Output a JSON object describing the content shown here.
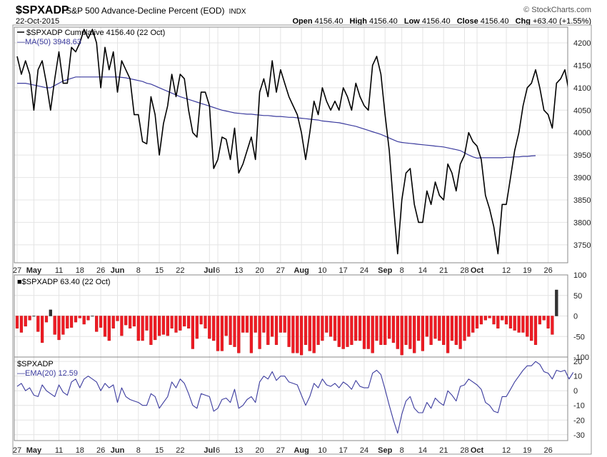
{
  "header": {
    "symbol": "$SPXADP",
    "description": "S&P 500 Advance-Decline Percent (EOD)",
    "exchange": "INDX",
    "date": "22-Oct-2015",
    "brand": "© StockCharts.com",
    "open_label": "Open",
    "open": "4156.40",
    "high_label": "High",
    "high": "4156.40",
    "low_label": "Low",
    "low": "4156.40",
    "close_label": "Close",
    "close": "4156.40",
    "chg_label": "Chg",
    "chg": "+63.40 (+1.55%)"
  },
  "colors": {
    "price_line": "#000000",
    "ma_line": "#3b3b9e",
    "ema_line": "#3b3b9e",
    "bar_up": "#333333",
    "bar_down": "#ee1c25",
    "grid": "#e4e4e4",
    "panel_border": "#888888"
  },
  "x_axis": {
    "ticks": [
      {
        "label": "27",
        "i": 0,
        "bold": false
      },
      {
        "label": "May",
        "i": 4,
        "bold": true
      },
      {
        "label": "11",
        "i": 10,
        "bold": false
      },
      {
        "label": "18",
        "i": 15,
        "bold": false
      },
      {
        "label": "26",
        "i": 20,
        "bold": false
      },
      {
        "label": "Jun",
        "i": 24,
        "bold": true
      },
      {
        "label": "8",
        "i": 29,
        "bold": false
      },
      {
        "label": "15",
        "i": 34,
        "bold": false
      },
      {
        "label": "22",
        "i": 39,
        "bold": false
      },
      {
        "label": "Jul",
        "i": 46,
        "bold": true
      },
      {
        "label": "6",
        "i": 48,
        "bold": false
      },
      {
        "label": "13",
        "i": 53,
        "bold": false
      },
      {
        "label": "20",
        "i": 58,
        "bold": false
      },
      {
        "label": "27",
        "i": 63,
        "bold": false
      },
      {
        "label": "Aug",
        "i": 68,
        "bold": true
      },
      {
        "label": "10",
        "i": 73,
        "bold": false
      },
      {
        "label": "17",
        "i": 78,
        "bold": false
      },
      {
        "label": "24",
        "i": 83,
        "bold": false
      },
      {
        "label": "Sep",
        "i": 88,
        "bold": true
      },
      {
        "label": "8",
        "i": 92,
        "bold": false
      },
      {
        "label": "14",
        "i": 97,
        "bold": false
      },
      {
        "label": "21",
        "i": 102,
        "bold": false
      },
      {
        "label": "28",
        "i": 107,
        "bold": false
      },
      {
        "label": "Oct",
        "i": 110,
        "bold": true
      },
      {
        "label": "12",
        "i": 117,
        "bold": false
      },
      {
        "label": "19",
        "i": 122,
        "bold": false
      },
      {
        "label": "26",
        "i": 127,
        "bold": false
      }
    ]
  },
  "chart_data": [
    {
      "type": "line",
      "panel": "price",
      "ylim": [
        3710,
        4235
      ],
      "yticks": [
        3750,
        3800,
        3850,
        3900,
        3950,
        4000,
        4050,
        4100,
        4150,
        4200
      ],
      "series": [
        {
          "name": "$SPXADP Cumulative",
          "legend": "$SPXADP Cumulative 4156.40 (22 Oct)",
          "values": [
            4170,
            4130,
            4160,
            4130,
            4050,
            4140,
            4160,
            4110,
            4050,
            4120,
            4180,
            4110,
            4110,
            4190,
            4180,
            4200,
            4230,
            4210,
            4230,
            4200,
            4100,
            4190,
            4140,
            4180,
            4090,
            4160,
            4140,
            4120,
            4040,
            4040,
            3980,
            3975,
            4080,
            4040,
            3950,
            4020,
            4060,
            4130,
            4080,
            4130,
            4120,
            4050,
            4000,
            3990,
            4090,
            4090,
            4060,
            3920,
            3940,
            3990,
            3985,
            3940,
            4010,
            3910,
            3930,
            3960,
            3990,
            3940,
            4090,
            4120,
            4080,
            4160,
            4090,
            4140,
            4110,
            4080,
            4060,
            4040,
            4000,
            3940,
            4000,
            4070,
            4040,
            4100,
            4070,
            4050,
            4070,
            4050,
            4100,
            4080,
            4050,
            4110,
            4080,
            4060,
            4050,
            4150,
            4170,
            4130,
            4040,
            3960,
            3840,
            3730,
            3850,
            3910,
            3920,
            3840,
            3800,
            3800,
            3870,
            3840,
            3890,
            3860,
            3850,
            3930,
            3910,
            3870,
            3930,
            3950,
            4000,
            3980,
            3970,
            3940,
            3860,
            3830,
            3790,
            3730,
            3840,
            3840,
            3900,
            3960,
            4000,
            4060,
            4100,
            4110,
            4140,
            4100,
            4050,
            4040,
            4010,
            4110,
            4120,
            4140,
            4090,
            4156.4
          ]
        },
        {
          "name": "MA(50)",
          "legend": "MA(50) 3948.63",
          "values": [
            4110,
            4110,
            4110,
            4108,
            4106,
            4104,
            4102,
            4100,
            4100,
            4105,
            4110,
            4115,
            4118,
            4121,
            4124,
            4124,
            4124,
            4124,
            4124,
            4124,
            4124,
            4124,
            4124,
            4124,
            4124,
            4123,
            4122,
            4120,
            4118,
            4116,
            4114,
            4110,
            4108,
            4104,
            4100,
            4096,
            4092,
            4088,
            4084,
            4080,
            4077,
            4074,
            4071,
            4068,
            4065,
            4062,
            4059,
            4056,
            4053,
            4050,
            4048,
            4046,
            4044,
            4043,
            4042,
            4041,
            4041,
            4040,
            4039,
            4038,
            4038,
            4037,
            4036,
            4036,
            4035,
            4034,
            4034,
            4033,
            4032,
            4031,
            4030,
            4029,
            4028,
            4026,
            4025,
            4024,
            4023,
            4022,
            4020,
            4018,
            4016,
            4014,
            4011,
            4008,
            4005,
            4002,
            3999,
            3996,
            3992,
            3988,
            3984,
            3980,
            3978,
            3977,
            3976,
            3975,
            3974,
            3973,
            3972,
            3971,
            3970,
            3969,
            3968,
            3966,
            3964,
            3962,
            3960,
            3955,
            3950,
            3946,
            3943,
            3944,
            3944,
            3944,
            3944,
            3944,
            3944,
            3945,
            3945,
            3946,
            3946,
            3947,
            3947,
            3948,
            3948.63
          ]
        }
      ]
    },
    {
      "type": "bar",
      "panel": "breadth",
      "ylim": [
        -100,
        100
      ],
      "yticks": [
        -100,
        -50,
        0,
        50,
        100
      ],
      "series": [
        {
          "name": "$SPXADP",
          "legend": "$SPXADP 63.40 (22 Oct)",
          "values": [
            -30,
            -40,
            -25,
            -10,
            0,
            -38,
            -65,
            -15,
            15,
            -45,
            -58,
            -45,
            -30,
            -28,
            -15,
            -5,
            -20,
            -10,
            0,
            -38,
            -28,
            -50,
            -60,
            -30,
            -12,
            -48,
            -22,
            -30,
            -25,
            -60,
            -60,
            -35,
            -70,
            -58,
            -48,
            -45,
            -48,
            -30,
            -40,
            -35,
            -25,
            -30,
            -80,
            -55,
            -20,
            -30,
            -55,
            -60,
            -85,
            -85,
            -48,
            -70,
            -75,
            -90,
            -40,
            -40,
            -90,
            -40,
            -80,
            -40,
            -70,
            -50,
            -70,
            -40,
            -40,
            -75,
            -90,
            -90,
            -95,
            -70,
            -85,
            -90,
            -70,
            -60,
            -40,
            -50,
            -60,
            -75,
            -80,
            -75,
            -70,
            -60,
            -60,
            -80,
            -80,
            -90,
            -60,
            -70,
            -70,
            -55,
            -65,
            -80,
            -95,
            -70,
            -80,
            -90,
            -60,
            -85,
            -50,
            -70,
            -55,
            -60,
            -70,
            -90,
            -60,
            -70,
            -80,
            -60,
            -50,
            -40,
            -30,
            -20,
            -10,
            -5,
            -20,
            -30,
            -10,
            -20,
            -30,
            -35,
            -40,
            -40,
            -50,
            -60,
            -70,
            -20,
            -10,
            -30,
            -45,
            63.4
          ]
        }
      ]
    },
    {
      "type": "line",
      "panel": "ema",
      "ylim": [
        -34,
        23
      ],
      "yticks": [
        -30,
        -20,
        -10,
        0,
        10,
        20
      ],
      "series": [
        {
          "name": "EMA(20)",
          "legend": "$SPXADP",
          "sublegend": "EMA(20) 12.59",
          "values": [
            3,
            5,
            0,
            2,
            -3,
            -4,
            4,
            0,
            -2,
            -4,
            4,
            -1,
            -3,
            6,
            8,
            2,
            8,
            10,
            8,
            6,
            0,
            5,
            2,
            4,
            -8,
            2,
            -4,
            -6,
            -7,
            -8,
            -10,
            -10,
            -2,
            -4,
            -12,
            -8,
            -4,
            6,
            2,
            8,
            5,
            -2,
            -10,
            -12,
            -2,
            -3,
            -4,
            -14,
            -12,
            -6,
            -5,
            -8,
            1,
            -12,
            -10,
            -6,
            -4,
            -8,
            6,
            10,
            8,
            13,
            7,
            10,
            10,
            6,
            5,
            4,
            -3,
            -10,
            -4,
            5,
            2,
            8,
            4,
            3,
            5,
            2,
            6,
            4,
            1,
            7,
            3,
            2,
            2,
            12,
            14,
            11,
            1,
            -10,
            -20,
            -29,
            -16,
            -7,
            -4,
            -12,
            -15,
            -15,
            -8,
            -12,
            -5,
            -8,
            -10,
            0,
            -3,
            -7,
            3,
            4,
            8,
            6,
            4,
            1,
            -8,
            -10,
            -14,
            -15,
            -4,
            -4,
            1,
            6,
            10,
            14,
            17,
            17,
            20,
            18,
            13,
            12,
            8,
            14,
            13,
            14,
            8,
            12.59
          ]
        }
      ]
    }
  ]
}
